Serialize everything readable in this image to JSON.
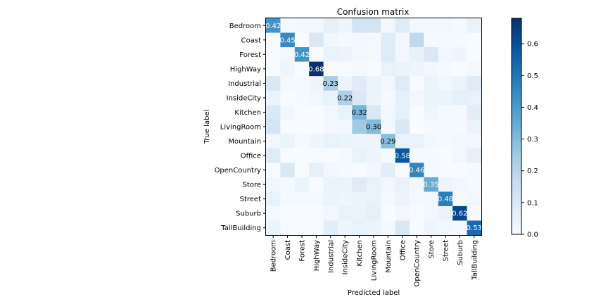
{
  "chart_data": {
    "type": "heatmap",
    "title": "Confusion matrix",
    "xlabel": "Predicted label",
    "ylabel": "True label",
    "categories": [
      "Bedroom",
      "Coast",
      "Forest",
      "HighWay",
      "Industrial",
      "InsideCity",
      "Kitchen",
      "LivingRoom",
      "Mountain",
      "Office",
      "OpenCountry",
      "Store",
      "Street",
      "Suburb",
      "TallBuilding"
    ],
    "cmap": "Blues",
    "vmin": 0,
    "vmax": 0.68,
    "colorbar_ticks": [
      "0.0",
      "0.1",
      "0.2",
      "0.3",
      "0.4",
      "0.5",
      "0.6"
    ],
    "matrix": [
      [
        0.42,
        0.01,
        0.02,
        0.02,
        0.06,
        0.03,
        0.12,
        0.12,
        0.02,
        0.08,
        0.02,
        0.02,
        0.02,
        0.01,
        0.05
      ],
      [
        0.0,
        0.45,
        0.0,
        0.1,
        0.02,
        0.01,
        0.02,
        0.01,
        0.08,
        0.02,
        0.18,
        0.01,
        0.01,
        0.01,
        0.0
      ],
      [
        0.0,
        0.02,
        0.42,
        0.0,
        0.05,
        0.04,
        0.02,
        0.01,
        0.08,
        0.02,
        0.05,
        0.1,
        0.02,
        0.03,
        0.0
      ],
      [
        0.0,
        0.03,
        0.0,
        0.68,
        0.0,
        0.0,
        0.01,
        0.0,
        0.05,
        0.04,
        0.03,
        0.02,
        0.01,
        0.0,
        0.01
      ],
      [
        0.1,
        0.01,
        0.01,
        0.03,
        0.23,
        0.04,
        0.08,
        0.04,
        0.02,
        0.08,
        0.0,
        0.04,
        0.02,
        0.04,
        0.08
      ],
      [
        0.04,
        0.0,
        0.01,
        0.02,
        0.05,
        0.22,
        0.1,
        0.04,
        0.01,
        0.06,
        0.02,
        0.04,
        0.04,
        0.06,
        0.05
      ],
      [
        0.1,
        0.02,
        0.0,
        0.0,
        0.02,
        0.05,
        0.32,
        0.1,
        0.02,
        0.06,
        0.0,
        0.03,
        0.01,
        0.01,
        0.07
      ],
      [
        0.12,
        0.0,
        0.0,
        0.0,
        0.02,
        0.02,
        0.25,
        0.3,
        0.02,
        0.1,
        0.0,
        0.01,
        0.01,
        0.01,
        0.04
      ],
      [
        0.02,
        0.04,
        0.01,
        0.03,
        0.05,
        0.04,
        0.03,
        0.03,
        0.29,
        0.05,
        0.05,
        0.02,
        0.01,
        0.02,
        0.02
      ],
      [
        0.08,
        0.0,
        0.0,
        0.0,
        0.0,
        0.01,
        0.05,
        0.03,
        0.01,
        0.58,
        0.01,
        0.01,
        0.0,
        0.02,
        0.06
      ],
      [
        0.0,
        0.1,
        0.0,
        0.06,
        0.02,
        0.01,
        0.0,
        0.02,
        0.07,
        0.0,
        0.46,
        0.01,
        0.0,
        0.0,
        0.01
      ],
      [
        0.02,
        0.01,
        0.04,
        0.0,
        0.04,
        0.04,
        0.08,
        0.05,
        0.02,
        0.05,
        0.02,
        0.35,
        0.03,
        0.02,
        0.01
      ],
      [
        0.05,
        0.01,
        0.01,
        0.01,
        0.04,
        0.03,
        0.04,
        0.05,
        0.01,
        0.04,
        0.01,
        0.02,
        0.48,
        0.01,
        0.02
      ],
      [
        0.01,
        0.0,
        0.0,
        0.0,
        0.02,
        0.05,
        0.04,
        0.06,
        0.0,
        0.02,
        0.0,
        0.02,
        0.04,
        0.62,
        0.0
      ],
      [
        0.04,
        0.0,
        0.0,
        0.0,
        0.07,
        0.03,
        0.05,
        0.04,
        0.01,
        0.1,
        0.0,
        0.03,
        0.02,
        0.01,
        0.53
      ]
    ]
  }
}
